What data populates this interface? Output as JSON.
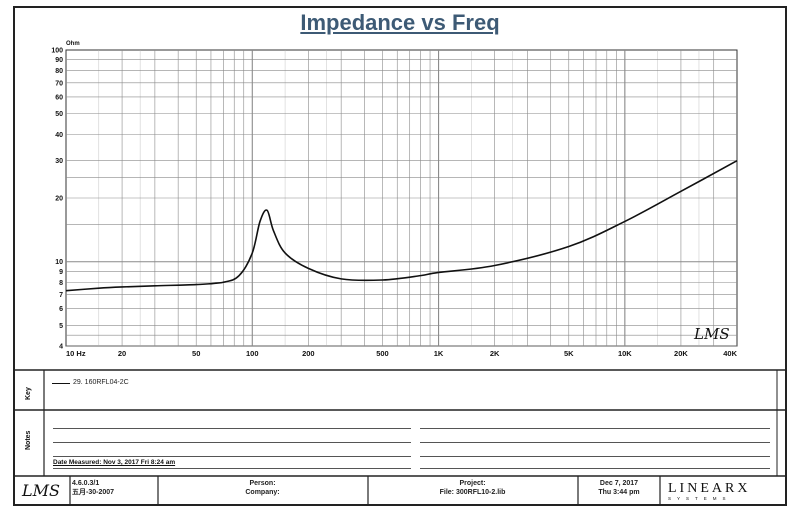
{
  "title": "Impedance vs Freq",
  "colors": {
    "title": "#3d5a75",
    "grid": "#8a8a8a",
    "curve": "#111111",
    "frame": "#222222"
  },
  "chart_data": {
    "type": "line",
    "title": "Impedance vs Freq",
    "ylabel": "Ohm",
    "xlabel": "",
    "x_scale": "log",
    "y_scale": "log",
    "xlim": [
      10,
      40000
    ],
    "ylim": [
      4,
      100
    ],
    "grid": true,
    "x_tick_labels": [
      "10 Hz",
      "20",
      "50",
      "100",
      "200",
      "500",
      "1K",
      "2K",
      "5K",
      "10K",
      "20K",
      "40K"
    ],
    "x_tick_values": [
      10,
      20,
      50,
      100,
      200,
      500,
      1000,
      2000,
      5000,
      10000,
      20000,
      40000
    ],
    "y_tick_labels": [
      "100",
      "90",
      "80",
      "70",
      "60",
      "50",
      "40",
      "30",
      "20",
      "10",
      "9",
      "8",
      "7",
      "6",
      "5",
      "4"
    ],
    "y_tick_values": [
      100,
      90,
      80,
      70,
      60,
      50,
      40,
      30,
      20,
      10,
      9,
      8,
      7,
      6,
      5,
      4
    ],
    "series": [
      {
        "name": "29. 160RFL04-2C",
        "x": [
          10,
          15,
          20,
          30,
          50,
          70,
          85,
          100,
          110,
          120,
          130,
          150,
          200,
          300,
          500,
          800,
          1000,
          2000,
          5000,
          10000,
          20000,
          40000
        ],
        "y": [
          7.3,
          7.5,
          7.6,
          7.7,
          7.8,
          8.0,
          8.6,
          11.0,
          15.5,
          17.5,
          14.0,
          11.0,
          9.3,
          8.3,
          8.2,
          8.6,
          8.9,
          9.6,
          11.8,
          15.5,
          21.5,
          30.0
        ]
      }
    ]
  },
  "legend_panel": {
    "label": "Key",
    "entry": "29. 160RFL04-2C"
  },
  "notes_panel": {
    "label": "Notes",
    "date_measured": "Date Measured: Nov 3, 2017  Fri 8:24 am"
  },
  "plot_logo": "LMS",
  "footer": {
    "logo": "LMS",
    "version": "4.6.0.3/1",
    "version_date": "五月-30-2007",
    "person_label": "Person:",
    "company_label": "Company:",
    "project_label": "Project:",
    "file_label": "File: 300RFL10-2.lib",
    "date": "Dec 7, 2017",
    "time": "Thu 3:44 pm",
    "brand": "LINEARX",
    "brand_sub": "SYSTEMS"
  }
}
